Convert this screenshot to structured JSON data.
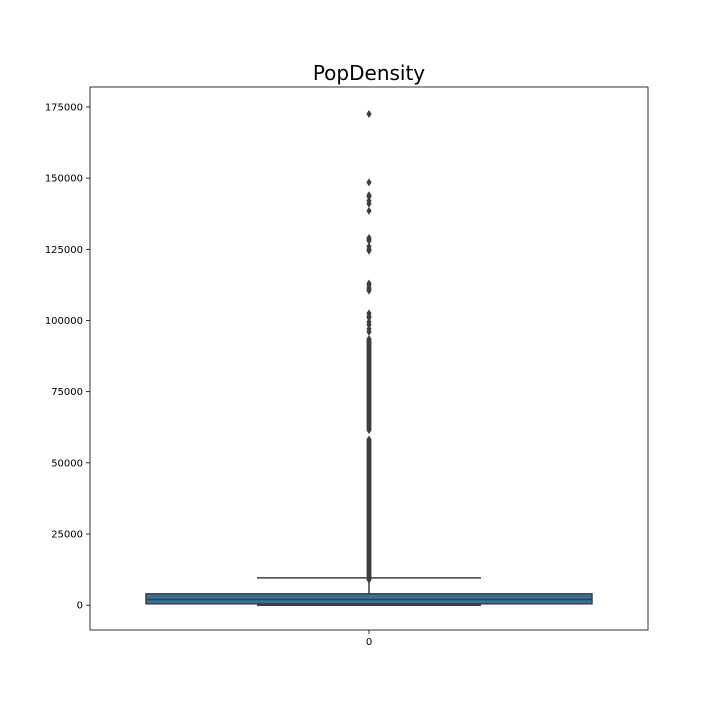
{
  "chart_data": {
    "type": "box",
    "title": "PopDensity",
    "xlabel": "",
    "ylabel": "",
    "categories": [
      "0"
    ],
    "ylim": [
      -8700,
      182000
    ],
    "yticks": [
      0,
      25000,
      50000,
      75000,
      100000,
      125000,
      150000,
      175000
    ],
    "grid": false,
    "box": {
      "q1": 500,
      "median": 2000,
      "q3": 4000,
      "whisker_low": 0,
      "whisker_high": 9600
    },
    "outliers": [
      172500,
      148500,
      144000,
      143500,
      142000,
      141000,
      138500,
      129000,
      128500,
      128000,
      126000,
      125000,
      124500,
      113000,
      112500,
      111500,
      111000,
      110500,
      102500,
      101500,
      101000,
      99500,
      98500,
      97000,
      96000
    ],
    "outlier_dense_ranges": [
      [
        9000,
        58500
      ],
      [
        61500,
        93500
      ]
    ],
    "colors": {
      "box_fill": "#3274a1",
      "line": "#3f3f3f"
    }
  }
}
